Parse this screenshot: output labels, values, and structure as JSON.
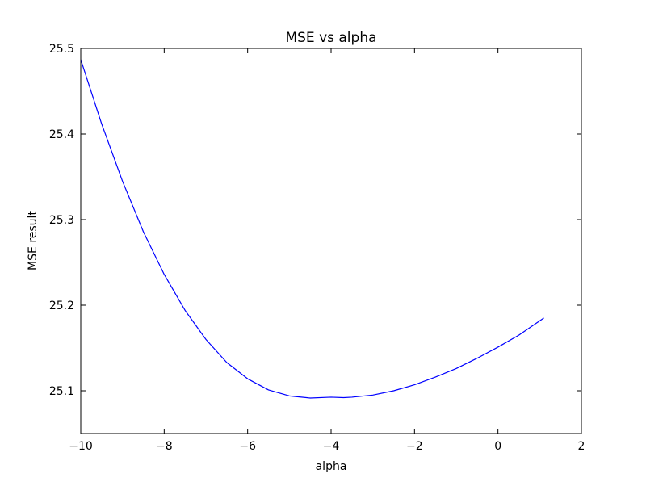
{
  "chart_data": {
    "type": "line",
    "title": "MSE vs alpha",
    "xlabel": "alpha",
    "ylabel": "MSE result",
    "xlim": [
      -10,
      2
    ],
    "ylim": [
      25.05,
      25.5
    ],
    "xticks": [
      -10,
      -8,
      -6,
      -4,
      -2,
      0,
      2
    ],
    "yticks": [
      25.1,
      25.2,
      25.3,
      25.4,
      25.5
    ],
    "xtick_labels": [
      "−10",
      "−8",
      "−6",
      "−4",
      "−2",
      "0",
      "2"
    ],
    "ytick_labels": [
      "25.1",
      "25.2",
      "25.3",
      "25.4",
      "25.5"
    ],
    "grid": false,
    "series": [
      {
        "color": "#0000ff",
        "x": [
          -10,
          -9.5,
          -9,
          -8.5,
          -8,
          -7.5,
          -7,
          -6.5,
          -6,
          -5.5,
          -5,
          -4.5,
          -4,
          -3.7,
          -3.5,
          -3,
          -2.5,
          -2,
          -1.5,
          -1,
          -0.5,
          0,
          0.5,
          1.1
        ],
        "y": [
          25.487,
          25.412,
          25.345,
          25.286,
          25.236,
          25.194,
          25.16,
          25.133,
          25.114,
          25.101,
          25.094,
          25.0915,
          25.0925,
          25.092,
          25.0925,
          25.095,
          25.1,
          25.107,
          25.116,
          25.126,
          25.138,
          25.151,
          25.165,
          25.185
        ]
      }
    ]
  }
}
